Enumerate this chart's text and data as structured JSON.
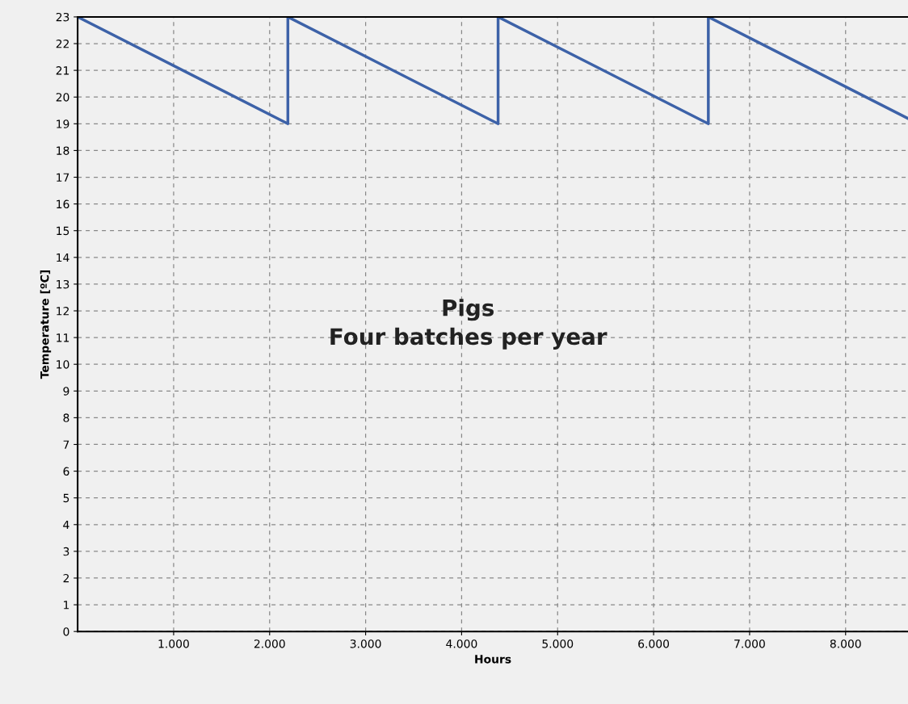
{
  "chart_data": {
    "type": "line",
    "xlabel": "Hours",
    "ylabel": "Temperature [ºC]",
    "annotations": [
      "Pigs\nFour batches per year"
    ],
    "x": [
      0,
      2190,
      2190,
      4380,
      4380,
      6570,
      6570,
      8650
    ],
    "series": [
      {
        "color": "#3d62a8",
        "values": [
          23,
          19,
          23,
          19,
          23,
          19,
          23,
          19.2
        ]
      }
    ],
    "xlim": [
      0,
      8650
    ],
    "xticks": [
      {
        "value": 1000,
        "label": "1.000"
      },
      {
        "value": 2000,
        "label": "2.000"
      },
      {
        "value": 3000,
        "label": "3.000"
      },
      {
        "value": 4000,
        "label": "4.000"
      },
      {
        "value": 5000,
        "label": "5.000"
      },
      {
        "value": 6000,
        "label": "6.000"
      },
      {
        "value": 7000,
        "label": "7.000"
      },
      {
        "value": 8000,
        "label": "8.000"
      }
    ],
    "ylim": [
      0,
      23
    ],
    "yticks": [
      0,
      1,
      2,
      3,
      4,
      5,
      6,
      7,
      8,
      9,
      10,
      11,
      12,
      13,
      14,
      15,
      16,
      17,
      18,
      19,
      20,
      21,
      22,
      23
    ],
    "grid": true,
    "line_style": "solid",
    "marker": "none"
  }
}
